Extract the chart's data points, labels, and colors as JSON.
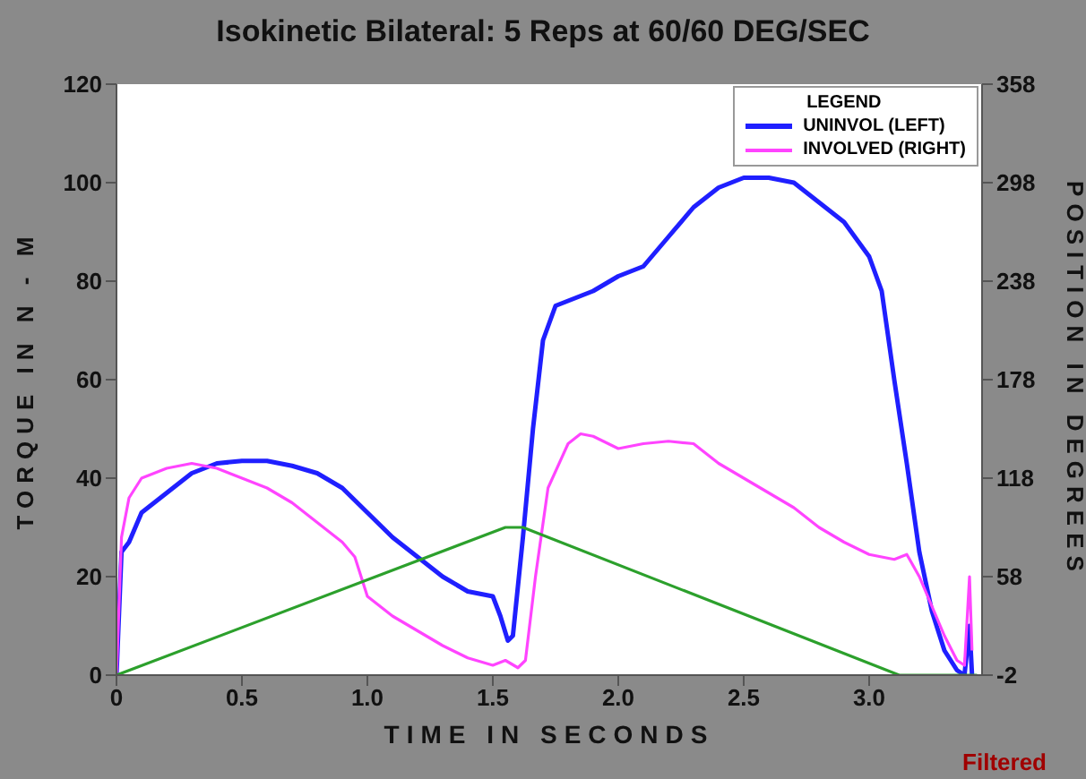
{
  "chart_data": {
    "type": "line",
    "title": "Isokinetic Bilateral: 5 Reps  at 60/60 DEG/SEC",
    "xlabel": "TIME IN SECONDS",
    "ylabel": "TORQUE IN N - M",
    "y2label": "POSITION IN DEGREES",
    "legend_title": "LEGEND",
    "legend": "top right",
    "marker": "none",
    "line_style": "solid",
    "xlim": [
      0,
      3.45
    ],
    "xticks": [
      0,
      {
        "value": 0.5,
        "label": "0.5"
      },
      {
        "value": 1,
        "label": "1.0"
      },
      {
        "value": 1.5,
        "label": "1.5"
      },
      {
        "value": 2,
        "label": "2.0"
      },
      {
        "value": 2.5,
        "label": "2.5"
      },
      {
        "value": 3,
        "label": "3.0"
      }
    ],
    "ylim": [
      0,
      120
    ],
    "yticks": [
      0,
      20,
      40,
      60,
      80,
      100,
      120
    ],
    "y2lim": [
      -2,
      358
    ],
    "y2ticks": [
      -2,
      58,
      118,
      178,
      238,
      298,
      358
    ],
    "annotations": [
      "Filtered"
    ],
    "series": [
      {
        "name": "UNINVOL (LEFT)",
        "color": "#1f1fff",
        "x": [
          0,
          0.02,
          0.05,
          0.1,
          0.2,
          0.3,
          0.4,
          0.5,
          0.6,
          0.7,
          0.8,
          0.9,
          1.0,
          1.1,
          1.2,
          1.3,
          1.4,
          1.45,
          1.5,
          1.53,
          1.56,
          1.58,
          1.62,
          1.66,
          1.7,
          1.75,
          1.85,
          1.9,
          2.0,
          2.1,
          2.2,
          2.3,
          2.4,
          2.5,
          2.6,
          2.7,
          2.8,
          2.9,
          3.0,
          3.05,
          3.1,
          3.15,
          3.2,
          3.25,
          3.3,
          3.35,
          3.38,
          3.4,
          3.41
        ],
        "values": [
          0,
          25,
          27,
          33,
          37,
          41,
          43,
          43.5,
          43.5,
          42.5,
          41,
          38,
          33,
          28,
          24,
          20,
          17,
          16.5,
          16,
          12,
          7,
          8,
          28,
          50,
          68,
          75,
          77,
          78,
          81,
          83,
          89,
          95,
          99,
          101,
          101,
          100,
          96,
          92,
          85,
          78,
          60,
          43,
          25,
          13,
          5,
          1,
          0,
          10,
          0
        ]
      },
      {
        "name": "INVOLVED (RIGHT)",
        "color": "#ff44ff",
        "x": [
          0,
          0.02,
          0.05,
          0.1,
          0.2,
          0.3,
          0.4,
          0.5,
          0.6,
          0.7,
          0.8,
          0.9,
          0.95,
          1.0,
          1.1,
          1.2,
          1.3,
          1.4,
          1.5,
          1.55,
          1.6,
          1.63,
          1.67,
          1.72,
          1.8,
          1.85,
          1.9,
          2.0,
          2.1,
          2.2,
          2.3,
          2.4,
          2.5,
          2.6,
          2.7,
          2.8,
          2.9,
          3.0,
          3.1,
          3.15,
          3.2,
          3.3,
          3.35,
          3.38,
          3.4,
          3.41
        ],
        "values": [
          0,
          28,
          36,
          40,
          42,
          43,
          42,
          40,
          38,
          35,
          31,
          27,
          24,
          16,
          12,
          9,
          6,
          3.5,
          2,
          3,
          1.5,
          3,
          20,
          38,
          47,
          49,
          48.5,
          46,
          47,
          47.5,
          47,
          43,
          40,
          37,
          34,
          30,
          27,
          24.5,
          23.5,
          24.5,
          20,
          8,
          3,
          2,
          20,
          5
        ]
      },
      {
        "color": "#2ca02c",
        "axis": "y2",
        "x": [
          0,
          1.55,
          1.62,
          3.12,
          3.43
        ],
        "values": [
          -2,
          88,
          88,
          -2,
          -2
        ]
      }
    ]
  }
}
